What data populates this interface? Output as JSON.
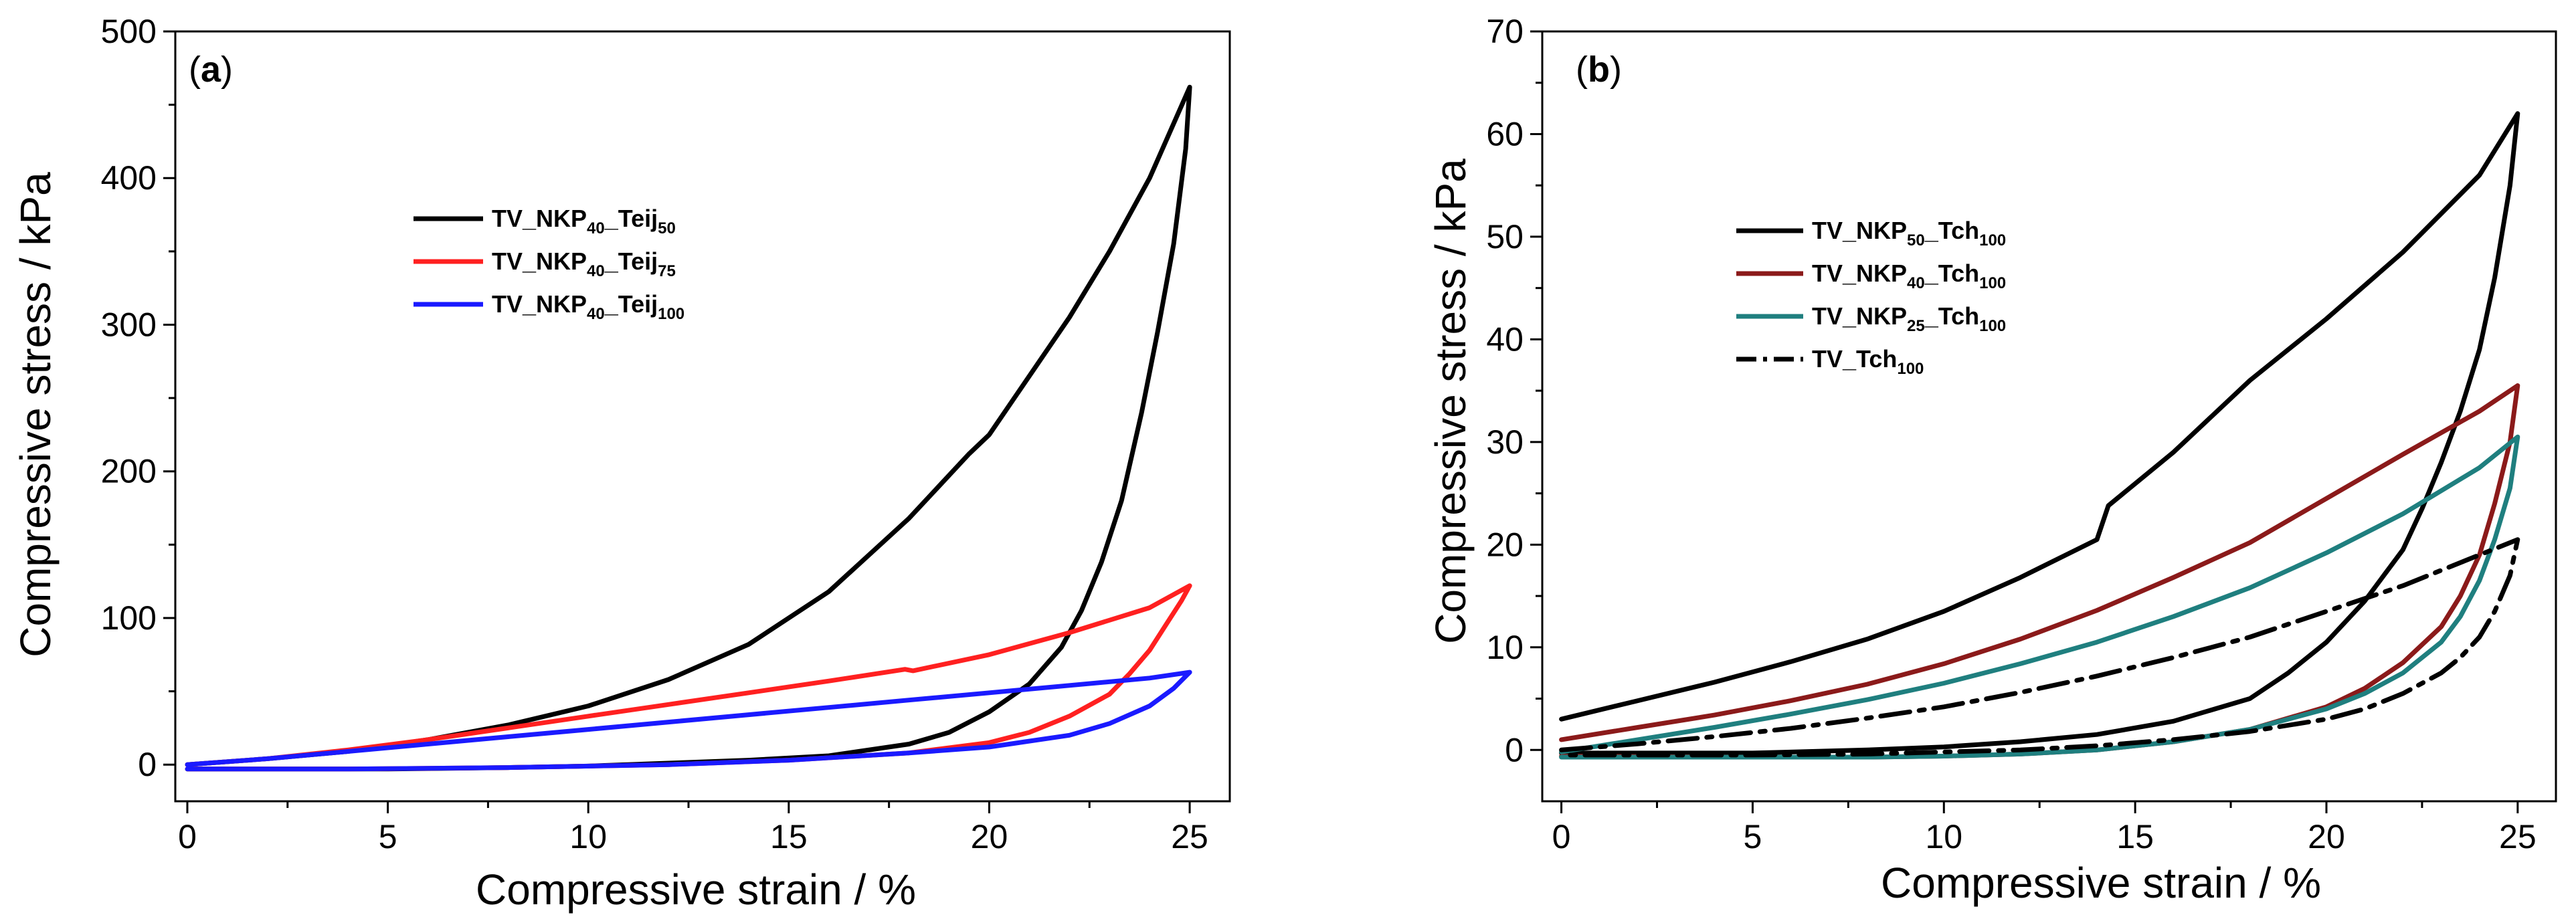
{
  "chart_data": [
    {
      "panel_label": "a",
      "type": "line",
      "xlabel": "Compressive strain / %",
      "ylabel": "Compressive stress / kPa",
      "xlim": [
        -0.3,
        26
      ],
      "ylim": [
        -25,
        500
      ],
      "xticks": [
        0,
        5,
        10,
        15,
        20,
        25
      ],
      "yticks": [
        0,
        100,
        200,
        300,
        400,
        500
      ],
      "legend_position": "upper-left",
      "series": [
        {
          "name": "TV_NKP40_Teij50",
          "color": "#000000",
          "dash": "solid",
          "legend_parts": [
            [
              "TV_NKP",
              ""
            ],
            [
              "40",
              "sub"
            ],
            [
              "_Teij",
              ""
            ],
            [
              "50",
              "sub"
            ]
          ],
          "x": [
            0,
            2,
            4,
            6,
            8,
            10,
            12,
            14,
            16,
            18,
            19.5,
            20,
            22,
            23,
            24,
            25,
            24.9,
            24.6,
            24.2,
            23.8,
            23.3,
            22.8,
            22.3,
            21.8,
            21.0,
            20.0,
            19.0,
            18.0,
            16.0,
            14.0,
            12.0,
            10.0,
            8.0,
            5.0,
            2.0,
            0
          ],
          "y": [
            0,
            4,
            9,
            17,
            27,
            40,
            58,
            82,
            118,
            168,
            212,
            225,
            305,
            350,
            400,
            462,
            420,
            355,
            295,
            240,
            180,
            138,
            105,
            80,
            55,
            36,
            22,
            14,
            6,
            3,
            1,
            -1,
            -2,
            -3,
            -3,
            -3
          ]
        },
        {
          "name": "TV_NKP40_Teij75",
          "color": "#ff2020",
          "dash": "solid",
          "legend_parts": [
            [
              "TV_NKP",
              ""
            ],
            [
              "40",
              "sub"
            ],
            [
              "_Teij",
              ""
            ],
            [
              "75",
              "sub"
            ]
          ],
          "x": [
            0,
            2,
            4,
            6,
            8,
            10,
            12,
            14,
            16,
            17.9,
            18.1,
            20,
            22,
            24,
            25,
            24.8,
            24.4,
            24.0,
            23.5,
            23.0,
            22.0,
            21.0,
            20.0,
            18.0,
            15.0,
            12.0,
            8.0,
            4.0,
            0
          ],
          "y": [
            0,
            4,
            10,
            17,
            25,
            33,
            41,
            49,
            57,
            65,
            64,
            75,
            90,
            107,
            122,
            112,
            95,
            78,
            62,
            48,
            33,
            22,
            15,
            8,
            3,
            0,
            -2,
            -3,
            -3
          ]
        },
        {
          "name": "TV_NKP40_Teij100",
          "color": "#1a1aff",
          "dash": "solid",
          "legend_parts": [
            [
              "TV_NKP",
              ""
            ],
            [
              "40",
              "sub"
            ],
            [
              "_Teij",
              ""
            ],
            [
              "100",
              "sub"
            ]
          ],
          "x": [
            0,
            2,
            4,
            6,
            8,
            10,
            12,
            14,
            16,
            18,
            20,
            22,
            24,
            25,
            24.6,
            24.0,
            23.0,
            22.0,
            20.0,
            18.0,
            15.0,
            12.0,
            8.0,
            4.0,
            0
          ],
          "y": [
            0,
            4,
            9,
            14,
            19,
            24,
            29,
            34,
            39,
            44,
            49,
            54,
            59,
            63,
            52,
            40,
            28,
            20,
            12,
            8,
            3,
            0,
            -2,
            -3,
            -3
          ]
        }
      ]
    },
    {
      "panel_label": "b",
      "type": "line",
      "xlabel": "Compressive strain / %",
      "ylabel": "Compressive stress / kPa",
      "xlim": [
        -0.5,
        26
      ],
      "ylim": [
        -5,
        70
      ],
      "xticks": [
        0,
        5,
        10,
        15,
        20,
        25
      ],
      "yticks": [
        0,
        10,
        20,
        30,
        40,
        50,
        60,
        70
      ],
      "legend_position": "upper-left",
      "series": [
        {
          "name": "TV_NKP50_Tch100",
          "color": "#000000",
          "dash": "solid",
          "legend_parts": [
            [
              "TV_NKP",
              ""
            ],
            [
              "50",
              "sub"
            ],
            [
              "_Tch",
              ""
            ],
            [
              "100",
              "sub"
            ]
          ],
          "x": [
            0,
            2,
            4,
            6,
            8,
            10,
            12,
            14,
            14.3,
            16,
            18,
            20,
            22,
            24,
            25,
            24.8,
            24.4,
            24.0,
            23.5,
            23.0,
            22.5,
            22.0,
            21.0,
            20.0,
            19.0,
            18.0,
            16.0,
            14.0,
            12.0,
            10.0,
            8.0,
            5.0,
            0
          ],
          "y": [
            3,
            4.8,
            6.6,
            8.6,
            10.8,
            13.5,
            16.8,
            20.5,
            23.8,
            29.0,
            36.0,
            42.0,
            48.5,
            56.0,
            62.0,
            55.0,
            46.0,
            39.0,
            33.0,
            28.0,
            23.5,
            19.5,
            14.5,
            10.5,
            7.5,
            5.0,
            2.8,
            1.5,
            0.8,
            0.3,
            0.0,
            -0.3,
            -0.3
          ]
        },
        {
          "name": "TV_NKP40_Tch100",
          "color": "#8b1a1a",
          "dash": "solid",
          "legend_parts": [
            [
              "TV_NKP",
              ""
            ],
            [
              "40",
              "sub"
            ],
            [
              "_Tch",
              ""
            ],
            [
              "100",
              "sub"
            ]
          ],
          "x": [
            0,
            2,
            4,
            6,
            8,
            10,
            12,
            14,
            16,
            18,
            20,
            22,
            24,
            25,
            24.8,
            24.4,
            24.0,
            23.5,
            23.0,
            22.0,
            21.0,
            20.0,
            18.0,
            16.0,
            14.0,
            12.0,
            10.0,
            8.0,
            5.0,
            0
          ],
          "y": [
            1.0,
            2.2,
            3.4,
            4.8,
            6.4,
            8.4,
            10.8,
            13.6,
            16.8,
            20.2,
            24.5,
            28.8,
            33.0,
            35.5,
            30.0,
            24.0,
            19.0,
            15.0,
            12.0,
            8.5,
            6.0,
            4.2,
            2.0,
            0.8,
            0.0,
            -0.4,
            -0.6,
            -0.7,
            -0.7,
            -0.6
          ]
        },
        {
          "name": "TV_NKP25_Tch100",
          "color": "#1f7f7f",
          "dash": "solid",
          "legend_parts": [
            [
              "TV_NKP",
              ""
            ],
            [
              "25",
              "sub"
            ],
            [
              "_Tch",
              ""
            ],
            [
              "100",
              "sub"
            ]
          ],
          "x": [
            0,
            2,
            4,
            6,
            8,
            10,
            12,
            14,
            16,
            18,
            20,
            22,
            24,
            25,
            24.8,
            24.4,
            24.0,
            23.5,
            23.0,
            22.0,
            21.0,
            20.0,
            18.0,
            16.0,
            14.0,
            12.0,
            10.0,
            8.0,
            5.0,
            0
          ],
          "y": [
            -0.2,
            1.0,
            2.2,
            3.5,
            4.9,
            6.5,
            8.4,
            10.5,
            13.0,
            15.8,
            19.2,
            23.0,
            27.5,
            30.5,
            25.5,
            20.5,
            16.5,
            13.0,
            10.5,
            7.5,
            5.5,
            4.0,
            2.0,
            0.8,
            0.0,
            -0.4,
            -0.6,
            -0.7,
            -0.7,
            -0.7
          ]
        },
        {
          "name": "TV_Tch100",
          "color": "#000000",
          "dash": "dashdot",
          "legend_parts": [
            [
              "TV_Tch",
              ""
            ],
            [
              "100",
              "sub"
            ]
          ],
          "x": [
            0,
            2,
            4,
            6,
            8,
            10,
            12,
            14,
            16,
            18,
            20,
            22,
            24,
            25,
            24.8,
            24.4,
            24.0,
            23.5,
            23.0,
            22.0,
            21.0,
            20.0,
            18.0,
            16.0,
            14.0,
            12.0,
            10.0,
            8.0,
            5.0,
            0
          ],
          "y": [
            0,
            0.6,
            1.3,
            2.1,
            3.1,
            4.2,
            5.6,
            7.2,
            9.0,
            11.0,
            13.5,
            16.0,
            19.0,
            20.5,
            17.0,
            13.5,
            11.0,
            9.0,
            7.5,
            5.5,
            4.0,
            3.0,
            1.8,
            1.0,
            0.4,
            0.0,
            -0.2,
            -0.4,
            -0.5,
            -0.5
          ]
        }
      ]
    }
  ]
}
